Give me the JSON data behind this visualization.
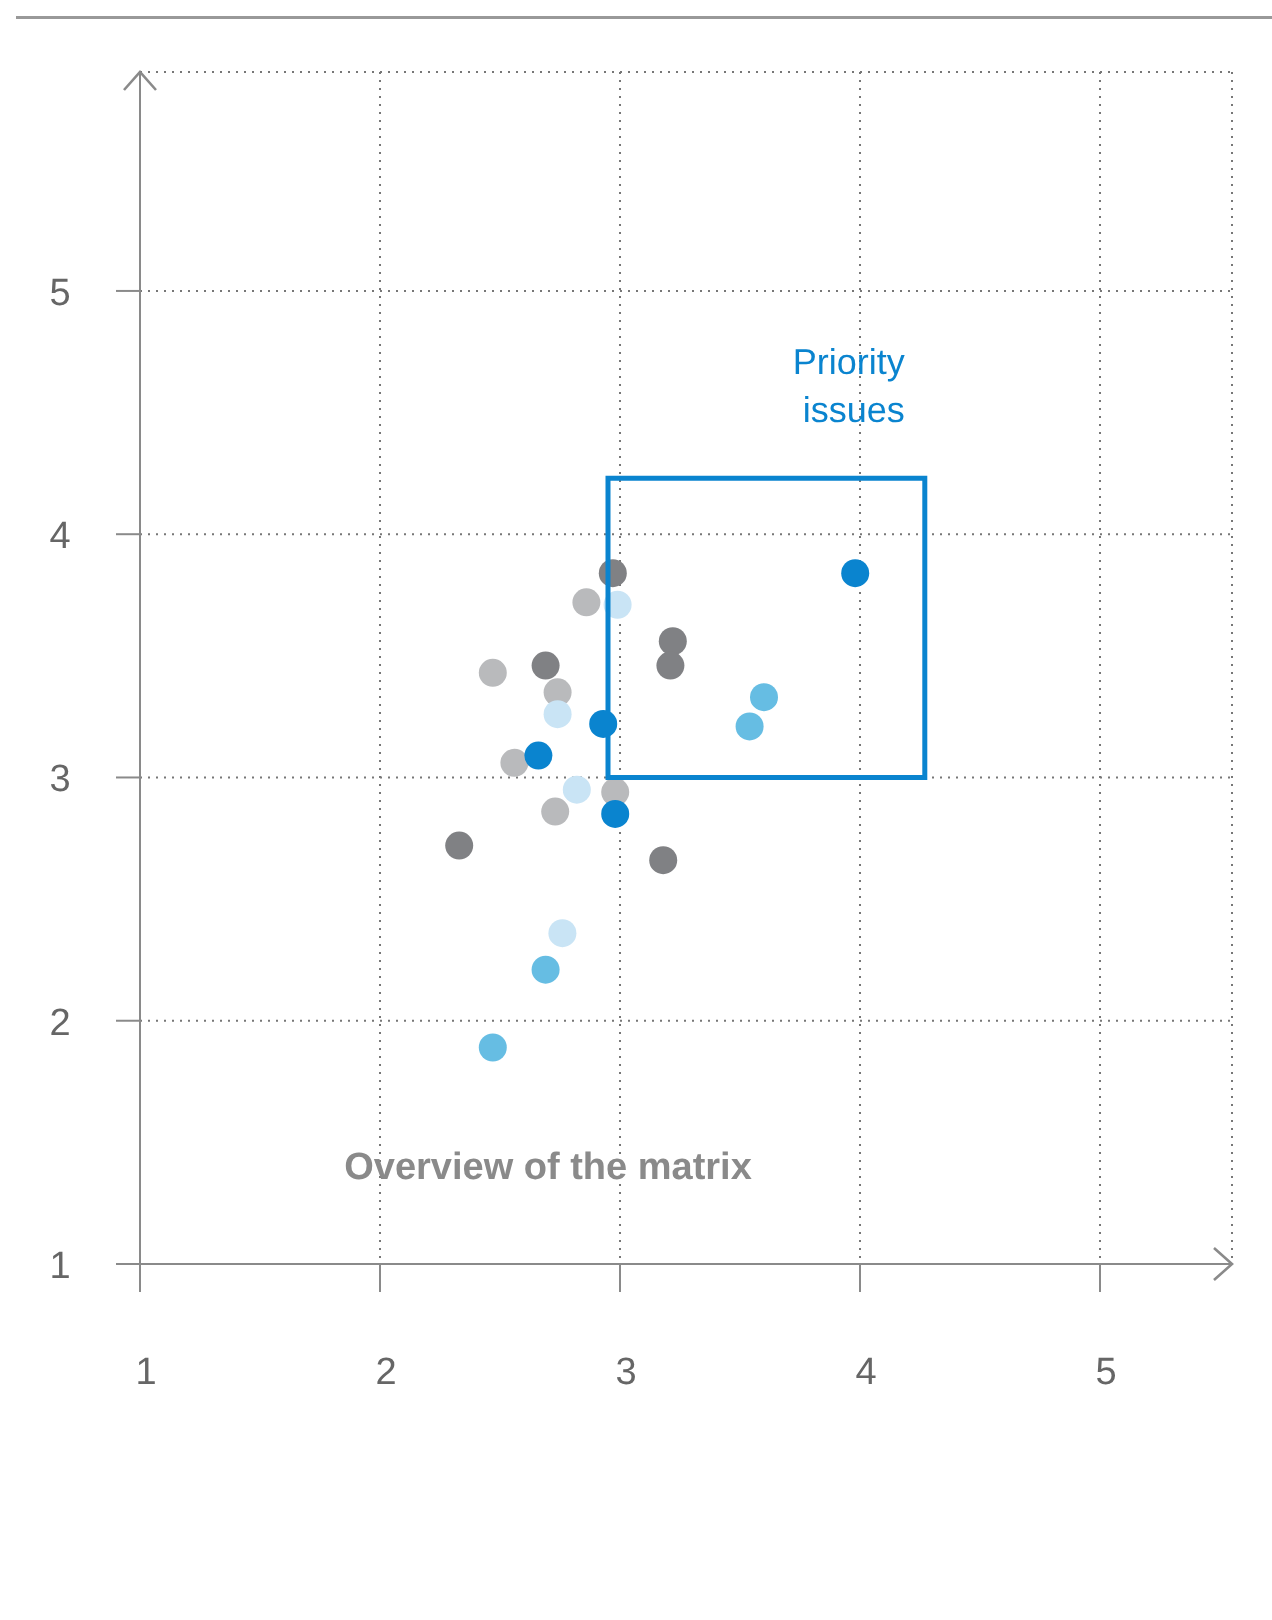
{
  "chart_data": {
    "type": "scatter",
    "xlim": [
      1,
      5.55
    ],
    "ylim": [
      1,
      5.9
    ],
    "xticks": [
      1,
      2,
      3,
      4,
      5
    ],
    "yticks": [
      1,
      2,
      3,
      4,
      5
    ],
    "grid": true,
    "marker": "circle",
    "legend": false,
    "series": [
      {
        "color": "#808184",
        "x": [
          2.97,
          3.22,
          3.21,
          2.69,
          2.33,
          3.18
        ],
        "values": [
          3.84,
          3.56,
          3.46,
          3.46,
          2.72,
          2.66
        ]
      },
      {
        "color": "#b9babc",
        "x": [
          2.86,
          2.47,
          2.74,
          2.56,
          2.73,
          2.98
        ],
        "values": [
          3.72,
          3.43,
          3.35,
          3.06,
          2.86,
          2.94
        ]
      },
      {
        "color": "#0a84cf",
        "x": [
          2.93,
          2.66,
          2.98,
          3.98
        ],
        "values": [
          3.22,
          3.09,
          2.85,
          3.84
        ]
      },
      {
        "color": "#66bde3",
        "x": [
          3.6,
          3.54,
          2.69,
          2.47
        ],
        "values": [
          3.33,
          3.21,
          2.21,
          1.89
        ]
      },
      {
        "color": "#c9e4f5",
        "x": [
          2.99,
          2.74,
          2.82,
          2.76
        ],
        "values": [
          3.71,
          3.26,
          2.95,
          2.36
        ]
      }
    ],
    "annotations": [
      "Priority issues",
      "Overview of the matrix"
    ]
  }
}
